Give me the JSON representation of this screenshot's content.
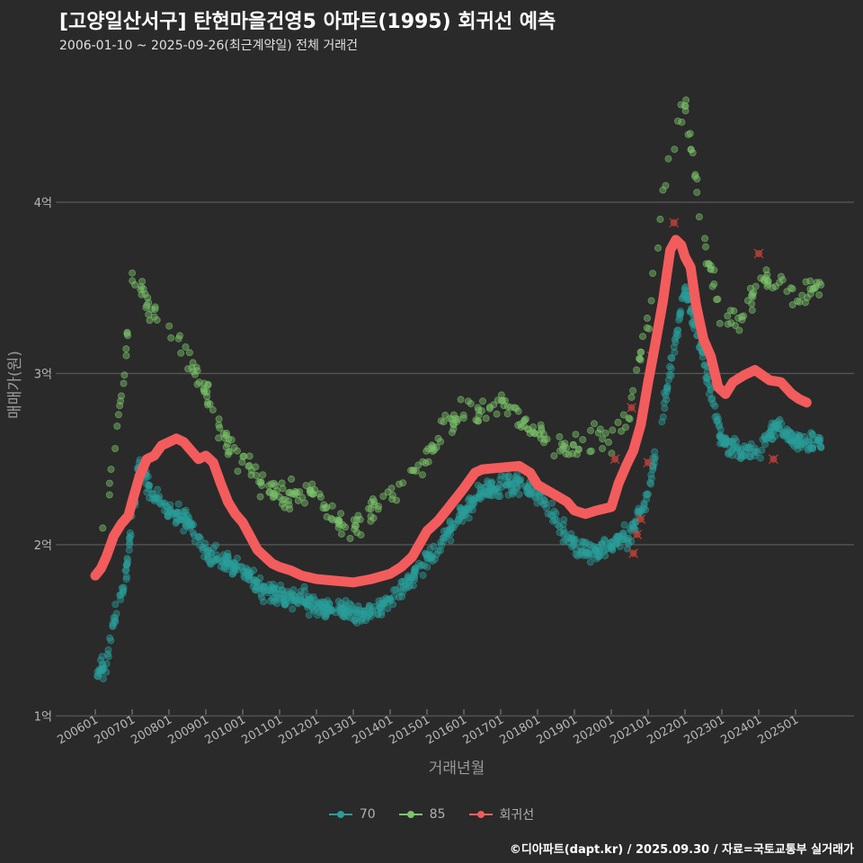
{
  "title": "[고양일산서구] 탄현마을건영5 아파트(1995) 회귀선 예측",
  "subtitle": "2006-01-10 ~ 2025-09-26(최근계약일) 전체 거래건",
  "caption": "©디아파트(dapt.kr) / 2025.09.30 / 자료=국토교통부 실거래가",
  "colors": {
    "background": "#2a2a2b",
    "s70": "#2a9d9a",
    "s85": "#7cc36b",
    "regression": "#f25c5c",
    "grid": "#555555"
  },
  "chart_data": {
    "type": "scatter",
    "xlabel": "거래년월",
    "ylabel": "매매가(원)",
    "xlim": [
      2006.0,
      2026.0
    ],
    "ylim": [
      0.95,
      4.85
    ],
    "x_ticks": [
      {
        "v": 2006.0,
        "label": "200601"
      },
      {
        "v": 2007.0,
        "label": "200701"
      },
      {
        "v": 2008.0,
        "label": "200801"
      },
      {
        "v": 2009.0,
        "label": "200901"
      },
      {
        "v": 2010.0,
        "label": "201001"
      },
      {
        "v": 2011.0,
        "label": "201101"
      },
      {
        "v": 2012.0,
        "label": "201201"
      },
      {
        "v": 2013.0,
        "label": "201301"
      },
      {
        "v": 2014.0,
        "label": "201401"
      },
      {
        "v": 2015.0,
        "label": "201501"
      },
      {
        "v": 2016.0,
        "label": "201601"
      },
      {
        "v": 2017.0,
        "label": "201701"
      },
      {
        "v": 2018.0,
        "label": "201801"
      },
      {
        "v": 2019.0,
        "label": "201901"
      },
      {
        "v": 2020.0,
        "label": "202001"
      },
      {
        "v": 2021.0,
        "label": "202101"
      },
      {
        "v": 2022.0,
        "label": "202201"
      },
      {
        "v": 2023.0,
        "label": "202301"
      },
      {
        "v": 2024.0,
        "label": "202401"
      },
      {
        "v": 2025.0,
        "label": "202501"
      }
    ],
    "y_ticks": [
      {
        "v": 1,
        "label": "1억"
      },
      {
        "v": 2,
        "label": "2억"
      },
      {
        "v": 3,
        "label": "3억"
      },
      {
        "v": 4,
        "label": "4억"
      }
    ],
    "legend": [
      {
        "name": "70",
        "key": "s70"
      },
      {
        "name": "85",
        "key": "s85"
      },
      {
        "name": "회귀선",
        "key": "regression"
      }
    ],
    "series_70_trend": [
      [
        2006.0,
        1.25
      ],
      [
        2006.3,
        1.3
      ],
      [
        2006.5,
        1.55
      ],
      [
        2006.8,
        1.75
      ],
      [
        2007.0,
        2.15
      ],
      [
        2007.2,
        2.5
      ],
      [
        2007.5,
        2.3
      ],
      [
        2008.0,
        2.2
      ],
      [
        2008.5,
        2.15
      ],
      [
        2009.0,
        1.95
      ],
      [
        2009.5,
        1.9
      ],
      [
        2010.0,
        1.85
      ],
      [
        2010.5,
        1.75
      ],
      [
        2011.0,
        1.7
      ],
      [
        2011.5,
        1.68
      ],
      [
        2012.0,
        1.65
      ],
      [
        2012.5,
        1.62
      ],
      [
        2013.0,
        1.6
      ],
      [
        2013.5,
        1.6
      ],
      [
        2014.0,
        1.68
      ],
      [
        2014.5,
        1.78
      ],
      [
        2015.0,
        1.9
      ],
      [
        2015.5,
        2.05
      ],
      [
        2016.0,
        2.2
      ],
      [
        2016.5,
        2.3
      ],
      [
        2017.0,
        2.35
      ],
      [
        2017.5,
        2.35
      ],
      [
        2018.0,
        2.3
      ],
      [
        2018.5,
        2.15
      ],
      [
        2019.0,
        2.0
      ],
      [
        2019.5,
        1.95
      ],
      [
        2020.0,
        2.0
      ],
      [
        2020.5,
        2.05
      ],
      [
        2021.0,
        2.3
      ],
      [
        2021.5,
        2.9
      ],
      [
        2022.0,
        3.5
      ],
      [
        2022.5,
        3.1
      ],
      [
        2023.0,
        2.6
      ],
      [
        2023.5,
        2.55
      ],
      [
        2024.0,
        2.55
      ],
      [
        2024.5,
        2.7
      ],
      [
        2025.0,
        2.6
      ],
      [
        2025.7,
        2.6
      ]
    ],
    "series_85_trend": [
      [
        2006.2,
        2.1
      ],
      [
        2006.5,
        2.5
      ],
      [
        2006.8,
        3.0
      ],
      [
        2007.0,
        3.6
      ],
      [
        2007.5,
        3.35
      ],
      [
        2008.0,
        3.3
      ],
      [
        2008.5,
        3.1
      ],
      [
        2009.0,
        2.9
      ],
      [
        2009.5,
        2.6
      ],
      [
        2010.0,
        2.5
      ],
      [
        2010.5,
        2.35
      ],
      [
        2011.0,
        2.3
      ],
      [
        2011.5,
        2.3
      ],
      [
        2012.0,
        2.3
      ],
      [
        2012.5,
        2.15
      ],
      [
        2013.0,
        2.1
      ],
      [
        2013.5,
        2.2
      ],
      [
        2014.0,
        2.3
      ],
      [
        2014.5,
        2.4
      ],
      [
        2015.0,
        2.5
      ],
      [
        2015.5,
        2.7
      ],
      [
        2016.0,
        2.75
      ],
      [
        2016.5,
        2.8
      ],
      [
        2017.0,
        2.85
      ],
      [
        2017.5,
        2.75
      ],
      [
        2018.0,
        2.65
      ],
      [
        2018.5,
        2.6
      ],
      [
        2019.0,
        2.55
      ],
      [
        2019.5,
        2.6
      ],
      [
        2020.0,
        2.6
      ],
      [
        2020.5,
        2.8
      ],
      [
        2021.0,
        3.3
      ],
      [
        2021.5,
        4.2
      ],
      [
        2022.0,
        4.6
      ],
      [
        2022.5,
        3.8
      ],
      [
        2023.0,
        3.3
      ],
      [
        2023.5,
        3.3
      ],
      [
        2024.0,
        3.55
      ],
      [
        2024.5,
        3.55
      ],
      [
        2025.0,
        3.45
      ],
      [
        2025.7,
        3.5
      ]
    ],
    "regression_line": [
      [
        2006.0,
        1.82
      ],
      [
        2006.15,
        1.86
      ],
      [
        2006.3,
        1.93
      ],
      [
        2006.5,
        2.05
      ],
      [
        2006.7,
        2.12
      ],
      [
        2006.9,
        2.17
      ],
      [
        2007.0,
        2.25
      ],
      [
        2007.2,
        2.4
      ],
      [
        2007.4,
        2.5
      ],
      [
        2007.6,
        2.52
      ],
      [
        2007.8,
        2.58
      ],
      [
        2008.0,
        2.6
      ],
      [
        2008.2,
        2.62
      ],
      [
        2008.4,
        2.6
      ],
      [
        2008.6,
        2.55
      ],
      [
        2008.8,
        2.5
      ],
      [
        2009.0,
        2.52
      ],
      [
        2009.2,
        2.48
      ],
      [
        2009.4,
        2.36
      ],
      [
        2009.6,
        2.25
      ],
      [
        2009.8,
        2.18
      ],
      [
        2010.0,
        2.13
      ],
      [
        2010.2,
        2.05
      ],
      [
        2010.4,
        1.97
      ],
      [
        2010.6,
        1.93
      ],
      [
        2010.8,
        1.89
      ],
      [
        2011.0,
        1.87
      ],
      [
        2011.3,
        1.85
      ],
      [
        2011.6,
        1.82
      ],
      [
        2012.0,
        1.8
      ],
      [
        2012.5,
        1.79
      ],
      [
        2013.0,
        1.78
      ],
      [
        2013.5,
        1.8
      ],
      [
        2014.0,
        1.83
      ],
      [
        2014.3,
        1.87
      ],
      [
        2014.6,
        1.93
      ],
      [
        2015.0,
        2.08
      ],
      [
        2015.3,
        2.14
      ],
      [
        2015.6,
        2.22
      ],
      [
        2016.0,
        2.33
      ],
      [
        2016.3,
        2.42
      ],
      [
        2016.5,
        2.44
      ],
      [
        2017.0,
        2.45
      ],
      [
        2017.5,
        2.46
      ],
      [
        2017.8,
        2.42
      ],
      [
        2018.0,
        2.35
      ],
      [
        2018.4,
        2.3
      ],
      [
        2018.8,
        2.25
      ],
      [
        2019.0,
        2.2
      ],
      [
        2019.3,
        2.18
      ],
      [
        2019.6,
        2.2
      ],
      [
        2020.0,
        2.22
      ],
      [
        2020.2,
        2.36
      ],
      [
        2020.4,
        2.46
      ],
      [
        2020.6,
        2.55
      ],
      [
        2020.8,
        2.7
      ],
      [
        2021.0,
        2.95
      ],
      [
        2021.2,
        3.18
      ],
      [
        2021.4,
        3.42
      ],
      [
        2021.6,
        3.72
      ],
      [
        2021.75,
        3.78
      ],
      [
        2021.9,
        3.75
      ],
      [
        2022.0,
        3.68
      ],
      [
        2022.15,
        3.62
      ],
      [
        2022.3,
        3.4
      ],
      [
        2022.5,
        3.2
      ],
      [
        2022.7,
        3.1
      ],
      [
        2022.9,
        2.92
      ],
      [
        2023.1,
        2.88
      ],
      [
        2023.3,
        2.95
      ],
      [
        2023.6,
        2.99
      ],
      [
        2023.9,
        3.02
      ],
      [
        2024.1,
        2.99
      ],
      [
        2024.3,
        2.96
      ],
      [
        2024.6,
        2.95
      ],
      [
        2024.9,
        2.88
      ],
      [
        2025.1,
        2.85
      ],
      [
        2025.3,
        2.83
      ]
    ],
    "flagged_points": [
      [
        2021.7,
        3.88
      ],
      [
        2020.8,
        2.15
      ],
      [
        2020.7,
        2.06
      ],
      [
        2020.6,
        1.95
      ],
      [
        2021.0,
        2.48
      ],
      [
        2021.1,
        3.1
      ],
      [
        2024.0,
        3.7
      ],
      [
        2024.4,
        2.5
      ],
      [
        2020.1,
        2.5
      ],
      [
        2020.55,
        2.8
      ]
    ]
  }
}
